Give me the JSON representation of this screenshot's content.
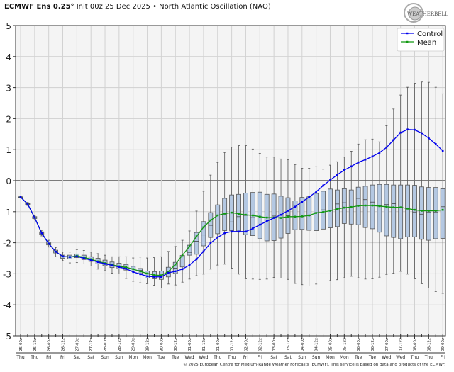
{
  "header": {
    "title_bold": "ECMWF Ens 0.25°",
    "title_rest": " Init 00z 25 Dec 2025 • North Atlantic Oscillation (NAO)",
    "logo_text": "WEATHERBELL"
  },
  "footer": "© 2025 European Centre for Medium-Range Weather Forecasts (ECMWF). This service is based on data and products of the ECMWF.",
  "chart_data": {
    "type": "boxplot-line",
    "title": "North Atlantic Oscillation (NAO)",
    "ylim": [
      -5,
      5
    ],
    "yticks": [
      5,
      4,
      3,
      2,
      1,
      0,
      -1,
      -2,
      -3,
      -4,
      -5
    ],
    "grid": true,
    "legend_position": "top-right",
    "time_step_hours": 6,
    "x_tick_labels": [
      "25-00z",
      "25-12z",
      "26-00z",
      "26-12z",
      "27-00z",
      "27-12z",
      "28-00z",
      "28-12z",
      "29-00z",
      "29-12z",
      "30-00z",
      "30-12z",
      "31-00z",
      "31-12z",
      "01-00z",
      "01-12z",
      "02-00z",
      "02-12z",
      "03-00z",
      "03-12z",
      "04-00z",
      "04-12z",
      "05-00z",
      "05-12z",
      "06-00z",
      "06-12z",
      "07-00z",
      "07-12z",
      "08-00z",
      "08-12z",
      "09-00z"
    ],
    "day_labels": [
      "Thu",
      "Thu",
      "Fri",
      "Fri",
      "Sat",
      "Sat",
      "Sun",
      "Sun",
      "Mon",
      "Mon",
      "Tue",
      "Tue",
      "Wed",
      "Wed",
      "Thu",
      "Thu",
      "Fri",
      "Fri",
      "Sat",
      "Sat",
      "Sun",
      "Sun",
      "Mon",
      "Mon",
      "Tue",
      "Tue",
      "Wed",
      "Wed",
      "Thu",
      "Thu",
      "Fri"
    ],
    "series": [
      {
        "name": "Control",
        "color": "#0000ee",
        "values": [
          -0.53,
          -0.75,
          -1.19,
          -1.69,
          -2.03,
          -2.29,
          -2.44,
          -2.46,
          -2.44,
          -2.5,
          -2.56,
          -2.62,
          -2.68,
          -2.73,
          -2.78,
          -2.84,
          -2.94,
          -3.01,
          -3.08,
          -3.1,
          -3.1,
          -2.97,
          -2.92,
          -2.85,
          -2.72,
          -2.53,
          -2.28,
          -2.01,
          -1.83,
          -1.69,
          -1.64,
          -1.64,
          -1.64,
          -1.54,
          -1.42,
          -1.31,
          -1.2,
          -1.1,
          -0.97,
          -0.84,
          -0.68,
          -0.53,
          -0.36,
          -0.16,
          0.02,
          0.19,
          0.34,
          0.46,
          0.59,
          0.68,
          0.78,
          0.9,
          1.07,
          1.31,
          1.55,
          1.65,
          1.64,
          1.53,
          1.37,
          1.18,
          0.96
        ]
      },
      {
        "name": "Mean",
        "color": "#119911",
        "values": [
          -0.53,
          -0.75,
          -1.19,
          -1.69,
          -2.03,
          -2.29,
          -2.44,
          -2.46,
          -2.42,
          -2.47,
          -2.53,
          -2.6,
          -2.66,
          -2.71,
          -2.76,
          -2.79,
          -2.85,
          -2.92,
          -2.99,
          -3.04,
          -3.05,
          -2.93,
          -2.7,
          -2.4,
          -2.12,
          -1.8,
          -1.5,
          -1.28,
          -1.12,
          -1.06,
          -1.03,
          -1.07,
          -1.1,
          -1.12,
          -1.16,
          -1.19,
          -1.19,
          -1.2,
          -1.16,
          -1.16,
          -1.15,
          -1.12,
          -1.04,
          -1.01,
          -0.97,
          -0.92,
          -0.87,
          -0.85,
          -0.81,
          -0.8,
          -0.8,
          -0.82,
          -0.84,
          -0.86,
          -0.86,
          -0.9,
          -0.94,
          -0.97,
          -0.97,
          -0.97,
          -0.94
        ]
      }
    ],
    "ensemble_box": {
      "max": [
        -0.5,
        -0.7,
        -1.12,
        -1.6,
        -1.92,
        -2.15,
        -2.3,
        -2.3,
        -2.22,
        -2.25,
        -2.3,
        -2.35,
        -2.4,
        -2.45,
        -2.45,
        -2.45,
        -2.49,
        -2.46,
        -2.49,
        -2.48,
        -2.45,
        -2.28,
        -2.12,
        -1.92,
        -1.62,
        -0.98,
        -0.34,
        0.18,
        0.59,
        0.91,
        1.08,
        1.13,
        1.13,
        1.02,
        0.88,
        0.76,
        0.76,
        0.7,
        0.68,
        0.52,
        0.4,
        0.4,
        0.45,
        0.37,
        0.5,
        0.61,
        0.76,
        0.95,
        1.18,
        1.32,
        1.34,
        1.25,
        1.77,
        2.31,
        2.76,
        3.01,
        3.14,
        3.18,
        3.17,
        3.01,
        2.8
      ],
      "q3": [
        -0.52,
        -0.73,
        -1.16,
        -1.65,
        -1.98,
        -2.24,
        -2.4,
        -2.4,
        -2.36,
        -2.4,
        -2.45,
        -2.5,
        -2.56,
        -2.62,
        -2.66,
        -2.7,
        -2.76,
        -2.83,
        -2.91,
        -2.93,
        -2.91,
        -2.79,
        -2.63,
        -2.41,
        -2.08,
        -1.67,
        -1.32,
        -1.03,
        -0.78,
        -0.57,
        -0.46,
        -0.44,
        -0.4,
        -0.38,
        -0.37,
        -0.44,
        -0.43,
        -0.5,
        -0.55,
        -0.65,
        -0.54,
        -0.52,
        -0.41,
        -0.34,
        -0.27,
        -0.3,
        -0.26,
        -0.3,
        -0.21,
        -0.18,
        -0.14,
        -0.12,
        -0.12,
        -0.14,
        -0.14,
        -0.14,
        -0.15,
        -0.2,
        -0.22,
        -0.22,
        -0.26
      ],
      "median": [
        -0.53,
        -0.75,
        -1.19,
        -1.69,
        -2.03,
        -2.29,
        -2.45,
        -2.46,
        -2.42,
        -2.47,
        -2.53,
        -2.6,
        -2.66,
        -2.71,
        -2.76,
        -2.8,
        -2.84,
        -2.89,
        -2.99,
        -3.04,
        -3.06,
        -2.95,
        -2.82,
        -2.59,
        -2.31,
        -1.95,
        -1.75,
        -1.44,
        -1.2,
        -1.1,
        -1.33,
        -1.16,
        -1.12,
        -1.19,
        -1.16,
        -1.19,
        -1.14,
        -1.19,
        -1.13,
        -1.16,
        -1.16,
        -1.13,
        -1.03,
        -0.94,
        -0.88,
        -0.75,
        -0.71,
        -0.65,
        -0.57,
        -0.61,
        -0.69,
        -0.81,
        -0.77,
        -0.74,
        -0.86,
        -0.91,
        -1.01,
        -1.08,
        -1.01,
        -1.01,
        -0.84
      ],
      "q1": [
        -0.55,
        -0.77,
        -1.22,
        -1.73,
        -2.07,
        -2.33,
        -2.5,
        -2.52,
        -2.48,
        -2.54,
        -2.6,
        -2.68,
        -2.74,
        -2.8,
        -2.84,
        -2.88,
        -2.92,
        -2.99,
        -3.14,
        -3.16,
        -3.18,
        -3.1,
        -2.99,
        -2.78,
        -2.4,
        -2.37,
        -2.1,
        -1.83,
        -1.71,
        -1.61,
        -1.61,
        -1.62,
        -1.74,
        -1.77,
        -1.87,
        -1.94,
        -1.93,
        -1.85,
        -1.7,
        -1.58,
        -1.57,
        -1.6,
        -1.61,
        -1.56,
        -1.52,
        -1.48,
        -1.38,
        -1.4,
        -1.42,
        -1.51,
        -1.55,
        -1.66,
        -1.78,
        -1.83,
        -1.87,
        -1.81,
        -1.81,
        -1.89,
        -1.92,
        -1.87,
        -1.86
      ],
      "min": [
        -0.56,
        -0.8,
        -1.26,
        -1.78,
        -2.14,
        -2.45,
        -2.58,
        -2.65,
        -2.64,
        -2.68,
        -2.75,
        -2.85,
        -2.9,
        -2.98,
        -3.0,
        -3.15,
        -3.24,
        -3.29,
        -3.32,
        -3.37,
        -3.46,
        -3.33,
        -3.36,
        -3.27,
        -3.17,
        -3.06,
        -3.01,
        -2.85,
        -2.72,
        -2.69,
        -2.82,
        -3.01,
        -3.16,
        -3.17,
        -3.18,
        -3.17,
        -3.12,
        -3.14,
        -3.18,
        -3.31,
        -3.35,
        -3.39,
        -3.33,
        -3.3,
        -3.22,
        -3.19,
        -3.13,
        -3.08,
        -3.13,
        -3.17,
        -3.16,
        -3.11,
        -3.02,
        -2.98,
        -2.92,
        -3.01,
        -3.16,
        -3.32,
        -3.46,
        -3.57,
        -3.63
      ],
      "box_color": "#b4c8e2"
    }
  }
}
